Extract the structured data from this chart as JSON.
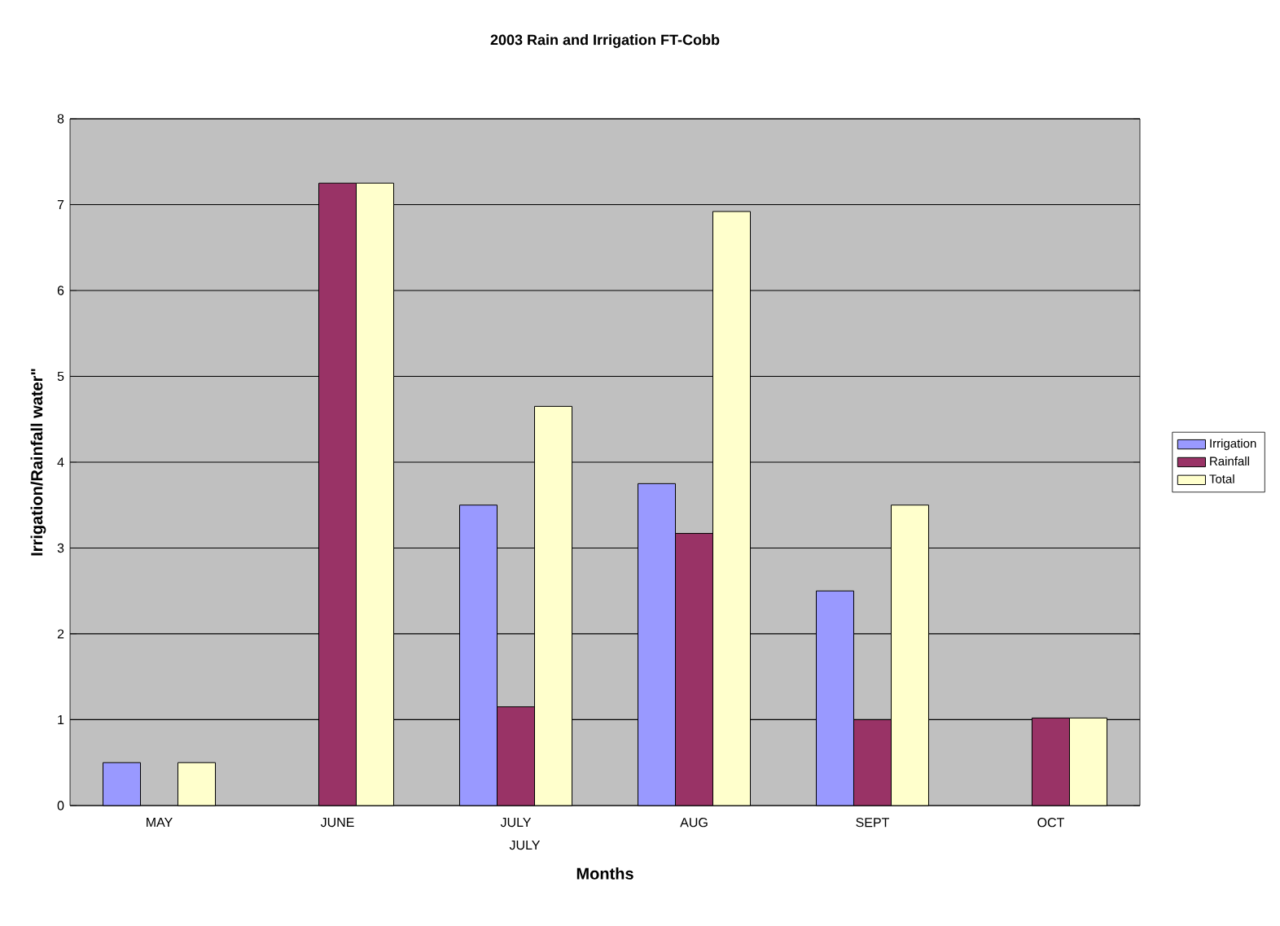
{
  "chart_data": {
    "type": "bar",
    "title": "2003 Rain and Irrigation FT-Cobb",
    "xlabel": "Months",
    "ylabel": "Irrigation/Rainfall water\"",
    "categories": [
      "MAY",
      "JUNE",
      "JULY",
      "AUG",
      "SEPT",
      "OCT"
    ],
    "series": [
      {
        "name": "Irrigation",
        "color": "#9999ff",
        "values": [
          0.5,
          null,
          3.5,
          3.75,
          2.5,
          null
        ]
      },
      {
        "name": "Rainfall",
        "color": "#993366",
        "values": [
          null,
          7.25,
          1.15,
          3.17,
          1.0,
          1.02
        ]
      },
      {
        "name": "Total",
        "color": "#ffffcc",
        "values": [
          0.5,
          7.25,
          4.65,
          6.92,
          3.5,
          1.02
        ]
      }
    ],
    "ylim": [
      0,
      8
    ],
    "yticks": [
      0,
      1,
      2,
      3,
      4,
      5,
      6,
      7,
      8
    ],
    "grid": "y",
    "legend": "right",
    "annotations": [
      "JULY"
    ]
  }
}
